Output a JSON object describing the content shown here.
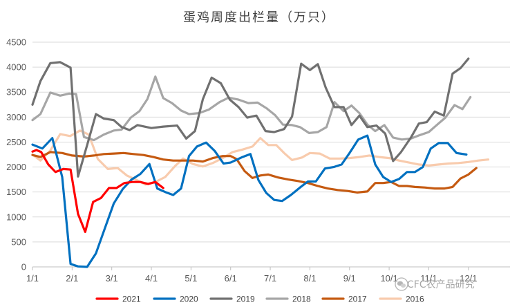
{
  "chart_data": {
    "type": "line",
    "title": "蛋鸡周度出栏量（万只）",
    "xlabel": "",
    "ylabel": "",
    "ylim": [
      0,
      4500
    ],
    "yticks": [
      0,
      500,
      1000,
      1500,
      2000,
      2500,
      3000,
      3500,
      4000,
      4500
    ],
    "ytick_labels": [
      "0",
      "500",
      "1000",
      "1500",
      "2000",
      "2500",
      "3000",
      "3500",
      "4000",
      "4500"
    ],
    "xticks": [
      0,
      1,
      2,
      3,
      4,
      5,
      6,
      7,
      8,
      9,
      10,
      11
    ],
    "xtick_labels": [
      "1/1",
      "2/1",
      "3/1",
      "4/1",
      "5/1",
      "6/1",
      "7/1",
      "8/1",
      "9/1",
      "10/1",
      "11/1",
      "12/1"
    ],
    "x_range": [
      0,
      12.05
    ],
    "grid": true,
    "legend_position": "bottom",
    "series": [
      {
        "name": "2021",
        "color": "#ff0000",
        "points": [
          [
            0,
            2310
          ],
          [
            0.1,
            2340
          ],
          [
            0.22,
            2300
          ],
          [
            0.4,
            2050
          ],
          [
            0.58,
            1900
          ],
          [
            0.78,
            1960
          ],
          [
            0.96,
            1950
          ],
          [
            1.15,
            1060
          ],
          [
            1.33,
            700
          ],
          [
            1.53,
            1300
          ],
          [
            1.73,
            1380
          ],
          [
            1.93,
            1580
          ],
          [
            2.12,
            1580
          ],
          [
            2.32,
            1680
          ],
          [
            2.52,
            1700
          ],
          [
            2.72,
            1700
          ],
          [
            2.92,
            1660
          ],
          [
            3.1,
            1700
          ],
          [
            3.3,
            1580
          ]
        ]
      },
      {
        "name": "2020",
        "color": "#0070c0",
        "points": [
          [
            0,
            2450
          ],
          [
            0.25,
            2370
          ],
          [
            0.5,
            2580
          ],
          [
            0.75,
            1800
          ],
          [
            0.96,
            60
          ],
          [
            1.15,
            10
          ],
          [
            1.38,
            0
          ],
          [
            1.6,
            270
          ],
          [
            1.82,
            760
          ],
          [
            2.05,
            1270
          ],
          [
            2.28,
            1560
          ],
          [
            2.5,
            1750
          ],
          [
            2.72,
            1860
          ],
          [
            2.95,
            2060
          ],
          [
            3.15,
            1570
          ],
          [
            3.35,
            1500
          ],
          [
            3.55,
            1440
          ],
          [
            3.75,
            1570
          ],
          [
            3.95,
            2220
          ],
          [
            4.15,
            2410
          ],
          [
            4.38,
            2490
          ],
          [
            4.6,
            2320
          ],
          [
            4.82,
            2070
          ],
          [
            5.0,
            2090
          ],
          [
            5.3,
            2200
          ],
          [
            5.5,
            2260
          ],
          [
            5.7,
            1740
          ],
          [
            5.9,
            1480
          ],
          [
            6.1,
            1340
          ],
          [
            6.3,
            1320
          ],
          [
            6.52,
            1440
          ],
          [
            6.75,
            1590
          ],
          [
            6.95,
            1710
          ],
          [
            7.15,
            1710
          ],
          [
            7.38,
            1970
          ],
          [
            7.6,
            2000
          ],
          [
            7.8,
            2050
          ],
          [
            8.0,
            2280
          ],
          [
            8.22,
            2550
          ],
          [
            8.45,
            2630
          ],
          [
            8.65,
            2050
          ],
          [
            8.85,
            1800
          ],
          [
            9.05,
            1700
          ],
          [
            9.25,
            1760
          ],
          [
            9.45,
            1900
          ],
          [
            9.65,
            1900
          ],
          [
            9.85,
            2000
          ],
          [
            10.05,
            2370
          ],
          [
            10.25,
            2480
          ],
          [
            10.48,
            2480
          ],
          [
            10.7,
            2280
          ],
          [
            10.95,
            2250
          ]
        ]
      },
      {
        "name": "2019",
        "color": "#707070",
        "points": [
          [
            0,
            3250
          ],
          [
            0.2,
            3720
          ],
          [
            0.45,
            4080
          ],
          [
            0.7,
            4100
          ],
          [
            0.96,
            3990
          ],
          [
            1.15,
            1810
          ],
          [
            1.38,
            2440
          ],
          [
            1.6,
            3060
          ],
          [
            1.8,
            2970
          ],
          [
            2.05,
            2940
          ],
          [
            2.25,
            2800
          ],
          [
            2.45,
            2740
          ],
          [
            2.65,
            2840
          ],
          [
            3.0,
            2780
          ],
          [
            3.3,
            2810
          ],
          [
            3.65,
            2830
          ],
          [
            3.88,
            2570
          ],
          [
            4.1,
            2720
          ],
          [
            4.3,
            3360
          ],
          [
            4.52,
            3790
          ],
          [
            4.75,
            3680
          ],
          [
            4.98,
            3350
          ],
          [
            5.2,
            3200
          ],
          [
            5.42,
            2990
          ],
          [
            5.65,
            3030
          ],
          [
            5.88,
            2720
          ],
          [
            6.1,
            2700
          ],
          [
            6.35,
            2760
          ],
          [
            6.55,
            3010
          ],
          [
            6.78,
            4070
          ],
          [
            7.0,
            3940
          ],
          [
            7.2,
            4060
          ],
          [
            7.4,
            3590
          ],
          [
            7.62,
            3200
          ],
          [
            7.85,
            3200
          ],
          [
            8.05,
            2840
          ],
          [
            8.25,
            3030
          ],
          [
            8.45,
            2800
          ],
          [
            8.68,
            2830
          ],
          [
            8.9,
            2670
          ],
          [
            9.1,
            2120
          ],
          [
            9.3,
            2300
          ],
          [
            9.55,
            2590
          ],
          [
            9.75,
            2870
          ],
          [
            9.95,
            2900
          ],
          [
            10.15,
            3110
          ],
          [
            10.38,
            3030
          ],
          [
            10.6,
            3870
          ],
          [
            10.8,
            3980
          ],
          [
            11.0,
            4170
          ]
        ]
      },
      {
        "name": "2018",
        "color": "#a6a6a6",
        "points": [
          [
            0,
            2940
          ],
          [
            0.2,
            3060
          ],
          [
            0.45,
            3490
          ],
          [
            0.7,
            3430
          ],
          [
            0.92,
            3470
          ],
          [
            1.1,
            3460
          ],
          [
            1.3,
            2600
          ],
          [
            1.55,
            2540
          ],
          [
            1.8,
            2650
          ],
          [
            2.05,
            2730
          ],
          [
            2.25,
            2750
          ],
          [
            2.48,
            2990
          ],
          [
            2.7,
            3120
          ],
          [
            2.9,
            3360
          ],
          [
            3.1,
            3810
          ],
          [
            3.3,
            3380
          ],
          [
            3.52,
            3280
          ],
          [
            3.75,
            3130
          ],
          [
            3.95,
            3060
          ],
          [
            4.2,
            3080
          ],
          [
            4.45,
            3150
          ],
          [
            4.72,
            3300
          ],
          [
            4.95,
            3390
          ],
          [
            5.2,
            3350
          ],
          [
            5.45,
            3280
          ],
          [
            5.68,
            3290
          ],
          [
            5.9,
            3180
          ],
          [
            6.12,
            3040
          ],
          [
            6.32,
            2850
          ],
          [
            6.55,
            2840
          ],
          [
            6.75,
            2800
          ],
          [
            6.98,
            2680
          ],
          [
            7.2,
            2700
          ],
          [
            7.42,
            2800
          ],
          [
            7.62,
            3300
          ],
          [
            7.85,
            3120
          ],
          [
            8.05,
            3230
          ],
          [
            8.25,
            3080
          ],
          [
            8.45,
            2850
          ],
          [
            8.65,
            2720
          ],
          [
            8.88,
            2840
          ],
          [
            9.1,
            2590
          ],
          [
            9.32,
            2550
          ],
          [
            9.55,
            2570
          ],
          [
            9.78,
            2640
          ],
          [
            10.0,
            2700
          ],
          [
            10.2,
            2840
          ],
          [
            10.42,
            2990
          ],
          [
            10.65,
            3240
          ],
          [
            10.85,
            3160
          ],
          [
            11.05,
            3400
          ]
        ]
      },
      {
        "name": "2017",
        "color": "#c55a11",
        "points": [
          [
            0,
            2240
          ],
          [
            0.2,
            2200
          ],
          [
            0.45,
            2300
          ],
          [
            0.75,
            2280
          ],
          [
            1.0,
            2230
          ],
          [
            1.3,
            2210
          ],
          [
            1.55,
            2230
          ],
          [
            1.8,
            2260
          ],
          [
            2.05,
            2270
          ],
          [
            2.3,
            2280
          ],
          [
            2.55,
            2260
          ],
          [
            2.8,
            2240
          ],
          [
            3.05,
            2200
          ],
          [
            3.3,
            2150
          ],
          [
            3.55,
            2130
          ],
          [
            3.8,
            2130
          ],
          [
            4.05,
            2130
          ],
          [
            4.3,
            2110
          ],
          [
            4.55,
            2180
          ],
          [
            4.8,
            2220
          ],
          [
            5.0,
            2220
          ],
          [
            5.15,
            2160
          ],
          [
            5.35,
            1920
          ],
          [
            5.55,
            1780
          ],
          [
            5.75,
            1830
          ],
          [
            5.95,
            1850
          ],
          [
            6.2,
            1790
          ],
          [
            6.45,
            1750
          ],
          [
            6.7,
            1720
          ],
          [
            6.95,
            1680
          ],
          [
            7.2,
            1620
          ],
          [
            7.45,
            1570
          ],
          [
            7.7,
            1540
          ],
          [
            7.95,
            1520
          ],
          [
            8.2,
            1490
          ],
          [
            8.45,
            1510
          ],
          [
            8.65,
            1680
          ],
          [
            8.85,
            1680
          ],
          [
            9.05,
            1700
          ],
          [
            9.25,
            1620
          ],
          [
            9.45,
            1620
          ],
          [
            9.65,
            1600
          ],
          [
            9.9,
            1590
          ],
          [
            10.15,
            1570
          ],
          [
            10.4,
            1570
          ],
          [
            10.6,
            1600
          ],
          [
            10.8,
            1770
          ],
          [
            11.0,
            1850
          ],
          [
            11.2,
            1980
          ]
        ]
      },
      {
        "name": "2016",
        "color": "#f8cbad",
        "points": [
          [
            0,
            2250
          ],
          [
            0.2,
            2130
          ],
          [
            0.45,
            2330
          ],
          [
            0.7,
            2660
          ],
          [
            0.95,
            2620
          ],
          [
            1.2,
            2730
          ],
          [
            1.42,
            2650
          ],
          [
            1.65,
            2160
          ],
          [
            1.9,
            1960
          ],
          [
            2.15,
            1980
          ],
          [
            2.38,
            1830
          ],
          [
            2.6,
            1750
          ],
          [
            2.85,
            1650
          ],
          [
            3.1,
            1700
          ],
          [
            3.35,
            1800
          ],
          [
            3.6,
            2020
          ],
          [
            3.8,
            2170
          ],
          [
            4.05,
            2060
          ],
          [
            4.3,
            2010
          ],
          [
            4.55,
            2080
          ],
          [
            4.8,
            2180
          ],
          [
            5.05,
            2300
          ],
          [
            5.3,
            2350
          ],
          [
            5.55,
            2410
          ],
          [
            5.75,
            2580
          ],
          [
            5.95,
            2440
          ],
          [
            6.15,
            2440
          ],
          [
            6.35,
            2280
          ],
          [
            6.55,
            2140
          ],
          [
            6.8,
            2190
          ],
          [
            7.0,
            2280
          ],
          [
            7.25,
            2270
          ],
          [
            7.5,
            2170
          ],
          [
            7.75,
            2170
          ],
          [
            8.0,
            2180
          ],
          [
            8.25,
            2200
          ],
          [
            8.5,
            2230
          ],
          [
            8.75,
            2200
          ],
          [
            9.0,
            2180
          ],
          [
            9.25,
            2130
          ],
          [
            9.5,
            2090
          ],
          [
            9.75,
            2050
          ],
          [
            10.0,
            2030
          ],
          [
            10.25,
            2050
          ],
          [
            10.5,
            2070
          ],
          [
            10.75,
            2080
          ],
          [
            11.0,
            2100
          ],
          [
            11.25,
            2130
          ],
          [
            11.5,
            2150
          ]
        ]
      }
    ],
    "legend": [
      "2021",
      "2020",
      "2019",
      "2018",
      "2017",
      "2016"
    ]
  },
  "watermark": {
    "text": "CFC农产品研究",
    "icon": "wechat-icon"
  }
}
